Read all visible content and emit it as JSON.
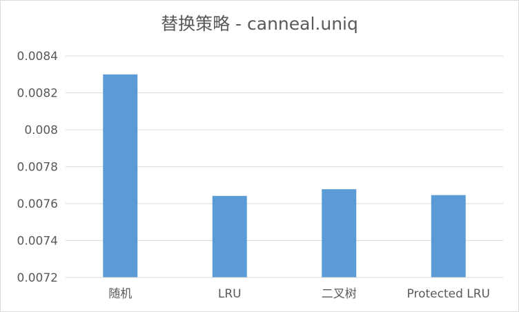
{
  "chart_data": {
    "type": "bar",
    "title": "替换策略 - canneal.uniq",
    "categories": [
      "随机",
      "LRU",
      "二叉树",
      "Protected LRU"
    ],
    "series": [
      {
        "values": [
          0.0083,
          0.007642,
          0.007678,
          0.007646
        ],
        "color": "#5b9bd5"
      }
    ],
    "xlabel": "",
    "ylabel": "",
    "ylim": [
      0.0072,
      0.0084
    ],
    "yticks": [
      0.0072,
      0.0074,
      0.0076,
      0.0078,
      0.008,
      0.0082,
      0.0084
    ],
    "ytick_labels": [
      "0.0072",
      "0.0074",
      "0.0076",
      "0.0078",
      "0.008",
      "0.0082",
      "0.0084"
    ],
    "grid": true,
    "legend": "none"
  },
  "colors": {
    "bar": "#5b9bd5",
    "grid": "#d9d9d9",
    "text": "#595959"
  }
}
